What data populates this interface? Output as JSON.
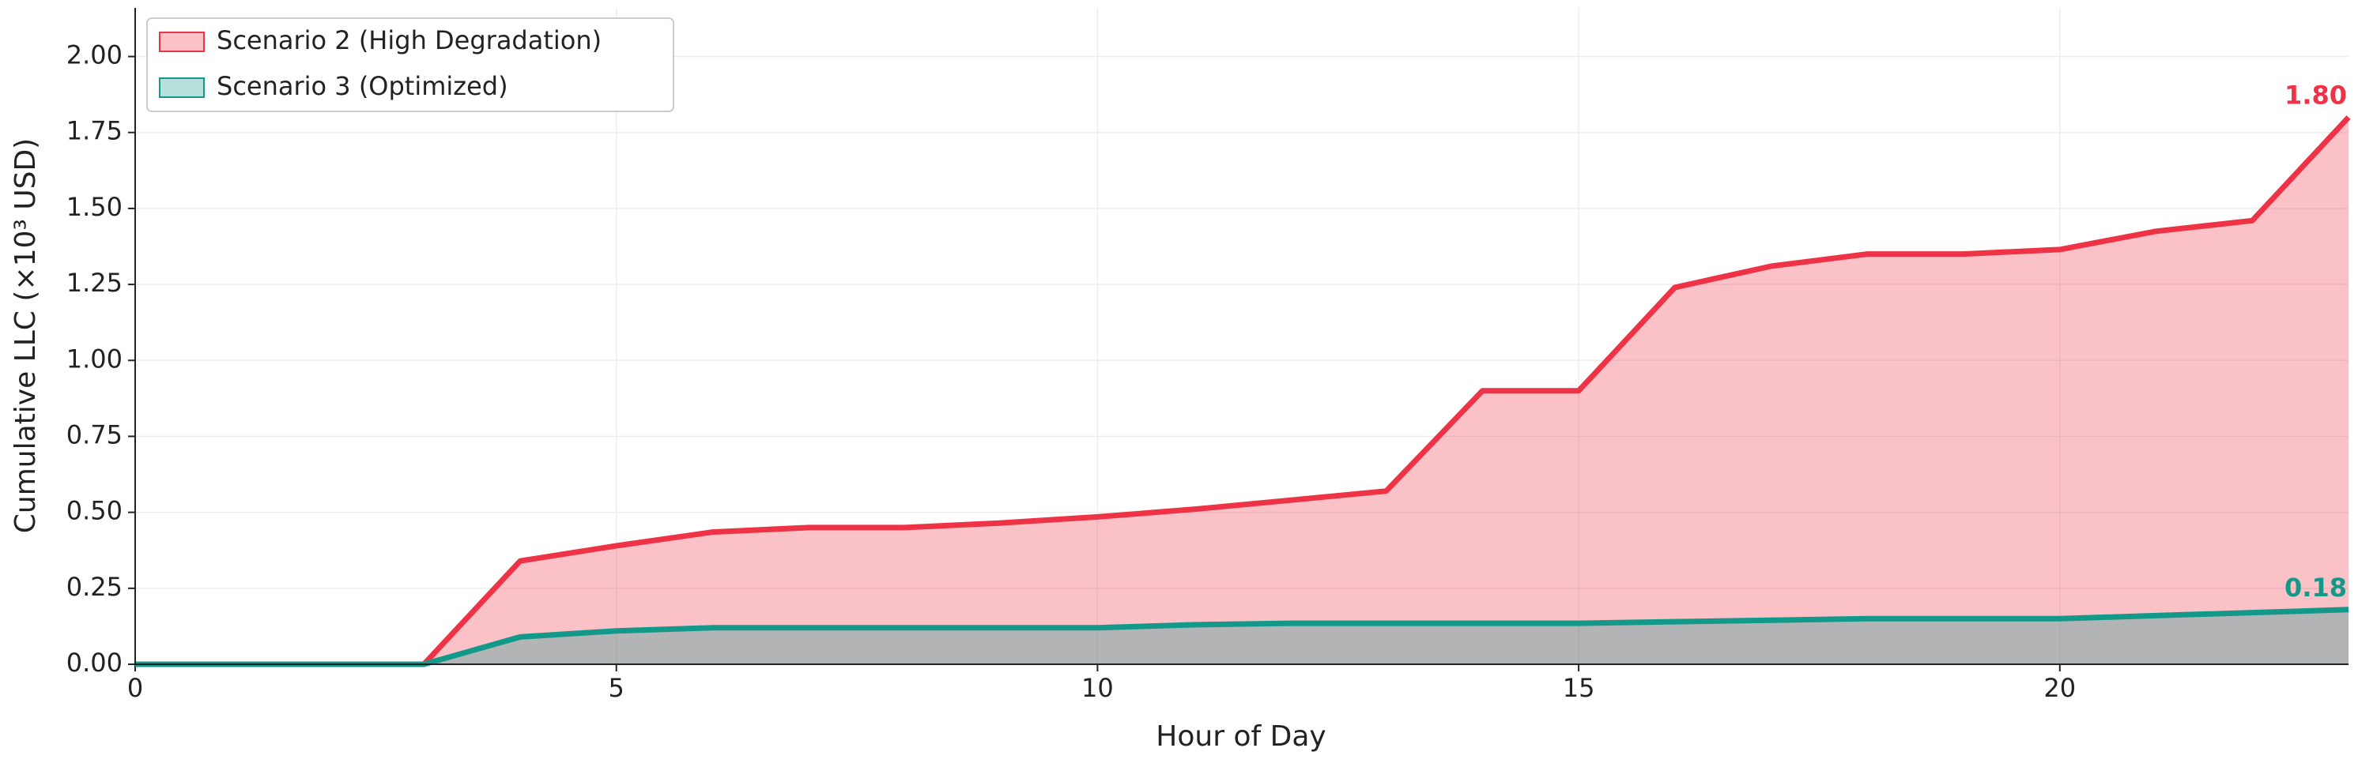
{
  "chart_data": {
    "type": "area",
    "x": [
      0,
      1,
      2,
      3,
      4,
      5,
      6,
      7,
      8,
      9,
      10,
      11,
      12,
      13,
      14,
      15,
      16,
      17,
      18,
      19,
      20,
      21,
      22,
      23
    ],
    "series": [
      {
        "name": "Scenario 2 (High Degradation)",
        "color": "#ef3346",
        "values": [
          0,
          0,
          0,
          0,
          0.34,
          0.39,
          0.435,
          0.45,
          0.45,
          0.465,
          0.485,
          0.51,
          0.54,
          0.57,
          0.9,
          0.9,
          1.24,
          1.31,
          1.35,
          1.35,
          1.365,
          1.425,
          1.46,
          1.8
        ],
        "value_labels": [
          null,
          null,
          null,
          null,
          null,
          null,
          null,
          null,
          null,
          null,
          null,
          null,
          null,
          null,
          null,
          null,
          null,
          null,
          null,
          null,
          null,
          null,
          null,
          "1.80"
        ]
      },
      {
        "name": "Scenario 3 (Optimized)",
        "color": "#12998a",
        "values": [
          0,
          0,
          0,
          0,
          0.09,
          0.11,
          0.12,
          0.12,
          0.12,
          0.12,
          0.12,
          0.13,
          0.135,
          0.135,
          0.135,
          0.135,
          0.14,
          0.145,
          0.15,
          0.15,
          0.15,
          0.16,
          0.17,
          0.18
        ],
        "value_labels": [
          null,
          null,
          null,
          null,
          null,
          null,
          null,
          null,
          null,
          null,
          null,
          null,
          null,
          null,
          null,
          null,
          null,
          null,
          null,
          null,
          null,
          null,
          null,
          "0.18"
        ]
      }
    ],
    "x_label": "Hour of Day",
    "y_label": "Cumulative LLC (×10³ USD)",
    "xlim": [
      0,
      23
    ],
    "xticks": [
      0,
      5,
      10,
      15,
      20
    ],
    "ylim": [
      0,
      2.16
    ],
    "yticks": [
      {
        "value": 0,
        "label": "0.00"
      },
      0.25,
      {
        "value": 0.5,
        "label": "0.50"
      },
      0.75,
      {
        "value": 1,
        "label": "1.00"
      },
      1.25,
      {
        "value": 1.5,
        "label": "1.50"
      },
      1.75,
      {
        "value": 2,
        "label": "2.00"
      }
    ],
    "grid": true,
    "legend": "upper left",
    "fill_opacity": 0.3
  }
}
